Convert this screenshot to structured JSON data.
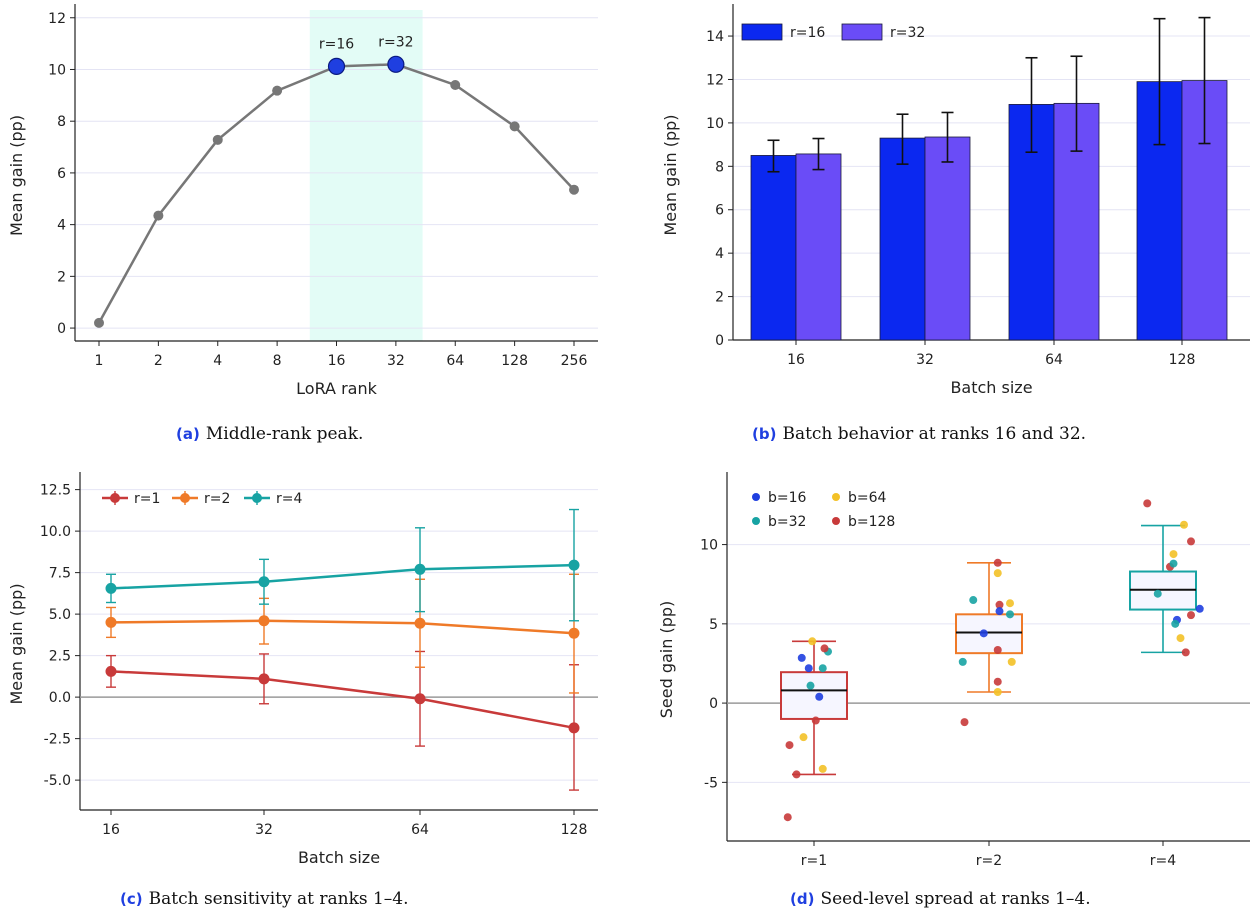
{
  "colors": {
    "line_gray": "#777777",
    "peak_blue": "#1f3fe0",
    "peak_band": "#e3fcf6",
    "bar16": "#0b28f0",
    "bar32": "#6a4cf7",
    "r1": "#c83a3a",
    "r2": "#ef7a28",
    "r4": "#17a3a3",
    "b16": "#1f3fe0",
    "b32": "#17a3a3",
    "b64": "#f3c127",
    "b128": "#c83a3a",
    "grid": "#e4e4f4",
    "zero": "#9a9a9a"
  },
  "captions": {
    "a": {
      "tag": "(a)",
      "text": "Middle-rank peak."
    },
    "b": {
      "tag": "(b)",
      "text": "Batch behavior at ranks 16 and 32."
    },
    "c": {
      "tag": "(c)",
      "text": "Batch sensitivity at ranks 1–4."
    },
    "d": {
      "tag": "(d)",
      "text": "Seed-level spread at ranks 1–4."
    }
  },
  "chart_data": [
    {
      "id": "a",
      "type": "line",
      "xlabel": "LoRA rank",
      "ylabel": "Mean gain (pp)",
      "categories": [
        "1",
        "2",
        "4",
        "8",
        "16",
        "32",
        "64",
        "128",
        "256"
      ],
      "values": [
        0.2,
        4.35,
        7.28,
        9.18,
        10.12,
        10.2,
        9.4,
        7.8,
        5.35
      ],
      "highlight": {
        "range": [
          "16",
          "32"
        ],
        "labels": [
          "r=16",
          "r=32"
        ]
      },
      "ylim": [
        -0.5,
        12.3
      ],
      "yticks": [
        0,
        2,
        4,
        6,
        8,
        10,
        12
      ],
      "grid": "horizontal"
    },
    {
      "id": "b",
      "type": "bar",
      "xlabel": "Batch size",
      "ylabel": "Mean gain (pp)",
      "categories": [
        "16",
        "32",
        "64",
        "128"
      ],
      "series": [
        {
          "name": "r=16",
          "values": [
            8.5,
            9.3,
            10.85,
            11.9
          ],
          "err_low": [
            7.75,
            8.1,
            8.65,
            9.0
          ],
          "err_high": [
            9.2,
            10.4,
            13.0,
            14.8
          ]
        },
        {
          "name": "r=32",
          "values": [
            8.57,
            9.35,
            10.9,
            11.95
          ],
          "err_low": [
            7.85,
            8.2,
            8.7,
            9.05
          ],
          "err_high": [
            9.28,
            10.48,
            13.07,
            14.85
          ]
        }
      ],
      "ylim": [
        0,
        15.2
      ],
      "yticks": [
        0,
        2,
        4,
        6,
        8,
        10,
        12,
        14
      ],
      "legend": "top-left",
      "grid": "horizontal"
    },
    {
      "id": "c",
      "type": "line",
      "xlabel": "Batch size",
      "ylabel": "Mean gain (pp)",
      "categories": [
        "16",
        "32",
        "64",
        "128"
      ],
      "series": [
        {
          "name": "r=1",
          "values": [
            1.55,
            1.1,
            -0.1,
            -1.85
          ],
          "err_low": [
            0.6,
            -0.4,
            -2.95,
            -5.6
          ],
          "err_high": [
            2.5,
            2.6,
            2.75,
            1.95
          ]
        },
        {
          "name": "r=2",
          "values": [
            4.5,
            4.6,
            4.45,
            3.85
          ],
          "err_low": [
            3.6,
            3.2,
            1.8,
            0.25
          ],
          "err_high": [
            5.4,
            5.95,
            7.1,
            7.4
          ]
        },
        {
          "name": "r=4",
          "values": [
            6.55,
            6.95,
            7.7,
            7.95
          ],
          "err_low": [
            5.7,
            5.6,
            5.15,
            4.6
          ],
          "err_high": [
            7.4,
            8.3,
            10.2,
            11.3
          ]
        }
      ],
      "ylim": [
        -6.8,
        13.2
      ],
      "yticks": [
        -5.0,
        -2.5,
        0.0,
        2.5,
        5.0,
        7.5,
        10.0,
        12.5
      ],
      "legend": "top-left",
      "grid": "horizontal"
    },
    {
      "id": "d",
      "type": "box",
      "xlabel": "",
      "ylabel": "Seed gain (pp)",
      "categories": [
        "r=1",
        "r=2",
        "r=4"
      ],
      "boxes": [
        {
          "name": "r=1",
          "q1": -1.0,
          "median": 0.8,
          "q3": 1.95,
          "whisker_low": -4.5,
          "whisker_high": 3.9
        },
        {
          "name": "r=2",
          "q1": 3.15,
          "median": 4.45,
          "q3": 5.6,
          "whisker_low": 0.7,
          "whisker_high": 8.85
        },
        {
          "name": "r=4",
          "q1": 5.9,
          "median": 7.15,
          "q3": 8.3,
          "whisker_low": 3.2,
          "whisker_high": 11.2
        }
      ],
      "points": [
        {
          "g": 0,
          "c": "b16",
          "dx": -0.07,
          "y": 2.85
        },
        {
          "g": 0,
          "c": "b16",
          "dx": -0.03,
          "y": 2.2
        },
        {
          "g": 0,
          "c": "b32",
          "dx": 0.05,
          "y": 2.2
        },
        {
          "g": 0,
          "c": "b32",
          "dx": 0.08,
          "y": 3.25
        },
        {
          "g": 0,
          "c": "b128",
          "dx": 0.06,
          "y": 3.45
        },
        {
          "g": 0,
          "c": "b64",
          "dx": -0.01,
          "y": 3.9
        },
        {
          "g": 0,
          "c": "b128",
          "dx": -0.14,
          "y": -2.65
        },
        {
          "g": 0,
          "c": "b128",
          "dx": -0.1,
          "y": -4.5
        },
        {
          "g": 0,
          "c": "b128",
          "dx": -0.15,
          "y": -7.2
        },
        {
          "g": 0,
          "c": "b64",
          "dx": -0.06,
          "y": -2.15
        },
        {
          "g": 0,
          "c": "b64",
          "dx": 0.05,
          "y": -4.15
        },
        {
          "g": 0,
          "c": "b128",
          "dx": 0.01,
          "y": -1.1
        },
        {
          "g": 0,
          "c": "b16",
          "dx": 0.03,
          "y": 0.4
        },
        {
          "g": 0,
          "c": "b32",
          "dx": -0.02,
          "y": 1.1
        },
        {
          "g": 1,
          "c": "b64",
          "dx": 0.05,
          "y": 8.2
        },
        {
          "g": 1,
          "c": "b128",
          "dx": 0.05,
          "y": 8.85
        },
        {
          "g": 1,
          "c": "b32",
          "dx": -0.09,
          "y": 6.5
        },
        {
          "g": 1,
          "c": "b128",
          "dx": 0.06,
          "y": 6.2
        },
        {
          "g": 1,
          "c": "b64",
          "dx": 0.12,
          "y": 6.3
        },
        {
          "g": 1,
          "c": "b16",
          "dx": 0.06,
          "y": 5.8
        },
        {
          "g": 1,
          "c": "b32",
          "dx": 0.12,
          "y": 5.6
        },
        {
          "g": 1,
          "c": "b128",
          "dx": 0.05,
          "y": 3.35
        },
        {
          "g": 1,
          "c": "b64",
          "dx": 0.13,
          "y": 2.6
        },
        {
          "g": 1,
          "c": "b32",
          "dx": -0.15,
          "y": 2.6
        },
        {
          "g": 1,
          "c": "b128",
          "dx": 0.05,
          "y": 1.35
        },
        {
          "g": 1,
          "c": "b64",
          "dx": 0.05,
          "y": 0.7
        },
        {
          "g": 1,
          "c": "b128",
          "dx": -0.14,
          "y": -1.2
        },
        {
          "g": 1,
          "c": "b16",
          "dx": -0.03,
          "y": 4.4
        },
        {
          "g": 2,
          "c": "b128",
          "dx": -0.09,
          "y": 12.6
        },
        {
          "g": 2,
          "c": "b64",
          "dx": 0.12,
          "y": 11.25
        },
        {
          "g": 2,
          "c": "b128",
          "dx": 0.16,
          "y": 10.2
        },
        {
          "g": 2,
          "c": "b64",
          "dx": 0.06,
          "y": 9.4
        },
        {
          "g": 2,
          "c": "b128",
          "dx": 0.04,
          "y": 8.6
        },
        {
          "g": 2,
          "c": "b32",
          "dx": 0.06,
          "y": 8.8
        },
        {
          "g": 2,
          "c": "b16",
          "dx": 0.21,
          "y": 5.95
        },
        {
          "g": 2,
          "c": "b16",
          "dx": 0.08,
          "y": 5.25
        },
        {
          "g": 2,
          "c": "b32",
          "dx": 0.07,
          "y": 5.0
        },
        {
          "g": 2,
          "c": "b128",
          "dx": 0.16,
          "y": 5.55
        },
        {
          "g": 2,
          "c": "b64",
          "dx": 0.1,
          "y": 4.1
        },
        {
          "g": 2,
          "c": "b128",
          "dx": 0.13,
          "y": 3.2
        },
        {
          "g": 2,
          "c": "b32",
          "dx": -0.03,
          "y": 6.9
        }
      ],
      "legend": {
        "entries": [
          {
            "label": "b=16",
            "c": "b16"
          },
          {
            "label": "b=64",
            "c": "b64"
          },
          {
            "label": "b=32",
            "c": "b32"
          },
          {
            "label": "b=128",
            "c": "b128"
          }
        ],
        "placement": "top-left"
      },
      "ylim": [
        -8.7,
        14.2
      ],
      "yticks": [
        -5,
        0,
        5,
        10
      ],
      "zero_line": true,
      "grid": "horizontal"
    }
  ]
}
